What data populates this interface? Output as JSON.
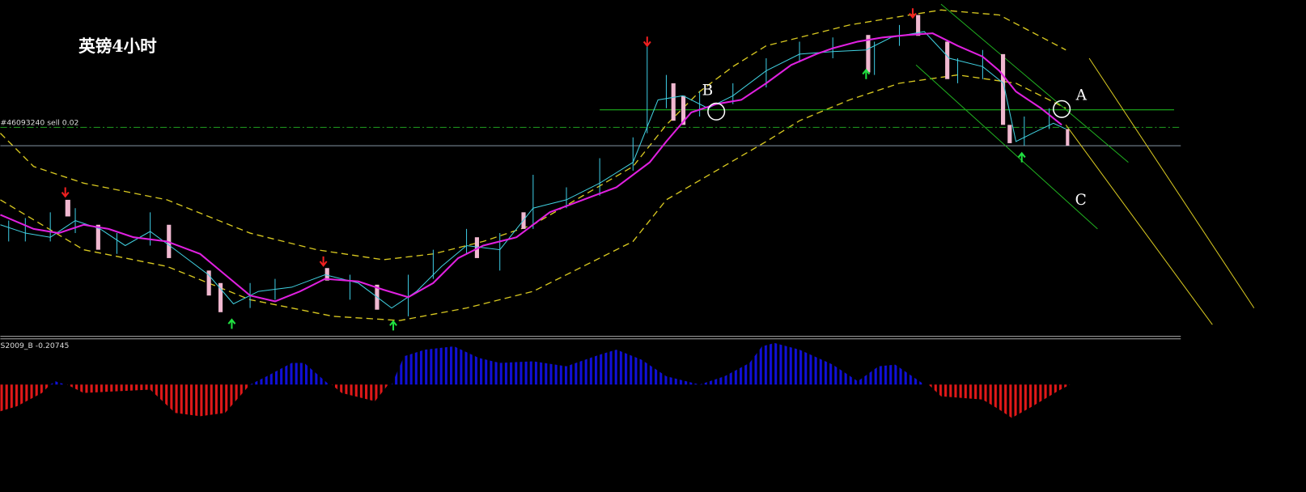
{
  "header": {
    "title": "英镑4小时"
  },
  "order_line": {
    "label": "#46093240 sell 0.02"
  },
  "indicator": {
    "label": "S2009_B -0.20745"
  },
  "points": {
    "a": "A",
    "b": "B",
    "c": "C"
  }
}
